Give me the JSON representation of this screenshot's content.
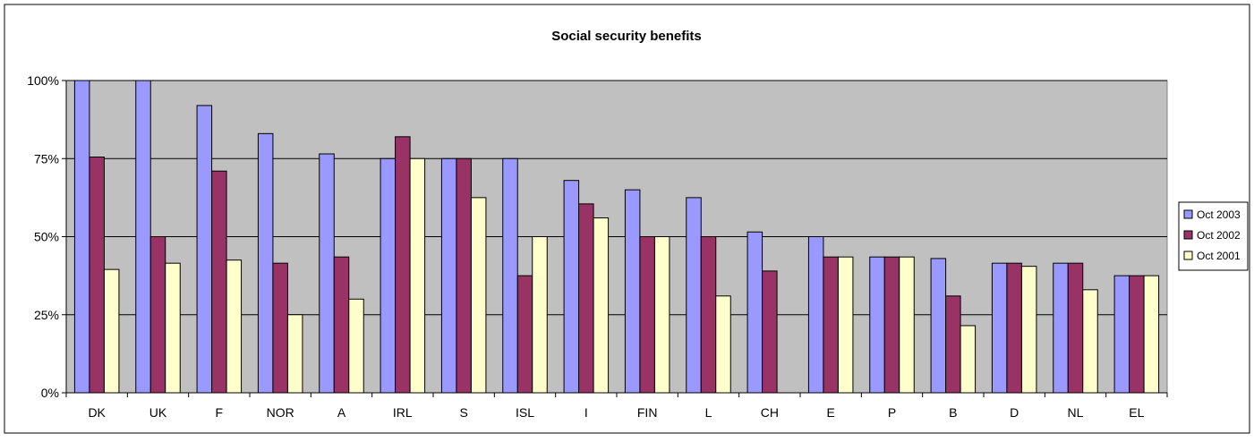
{
  "chart_data": {
    "type": "bar",
    "title": "Social security benefits",
    "xlabel": "",
    "ylabel": "",
    "ylim": [
      0,
      100
    ],
    "yticks": [
      0,
      25,
      50,
      75,
      100
    ],
    "ytick_labels": [
      "0%",
      "25%",
      "50%",
      "75%",
      "100%"
    ],
    "grid": true,
    "legend": "right",
    "categories": [
      "DK",
      "UK",
      "F",
      "NOR",
      "A",
      "IRL",
      "S",
      "ISL",
      "I",
      "FIN",
      "L",
      "CH",
      "E",
      "P",
      "B",
      "D",
      "NL",
      "EL"
    ],
    "series": [
      {
        "name": "Oct 2003",
        "color": "#9999ff",
        "values": [
          100,
          100,
          92,
          83,
          76.5,
          75,
          75,
          75,
          68,
          65,
          62.5,
          51.5,
          50,
          43.5,
          43,
          41.5,
          41.5,
          37.5
        ]
      },
      {
        "name": "Oct 2002",
        "color": "#993366",
        "values": [
          75.5,
          50,
          71,
          41.5,
          43.5,
          82,
          75,
          37.5,
          60.5,
          50,
          50,
          39,
          43.5,
          43.5,
          31,
          41.5,
          41.5,
          37.5
        ]
      },
      {
        "name": "Oct 2001",
        "color": "#ffffcc",
        "values": [
          39.5,
          41.5,
          42.5,
          25,
          30,
          75,
          62.5,
          50,
          56,
          50,
          31,
          0,
          43.5,
          43.5,
          21.5,
          40.5,
          33,
          37.5
        ]
      }
    ],
    "colors": {
      "plot_background": "#c0c0c0",
      "bar_stroke": "#000000",
      "gridline": "#000000"
    }
  }
}
